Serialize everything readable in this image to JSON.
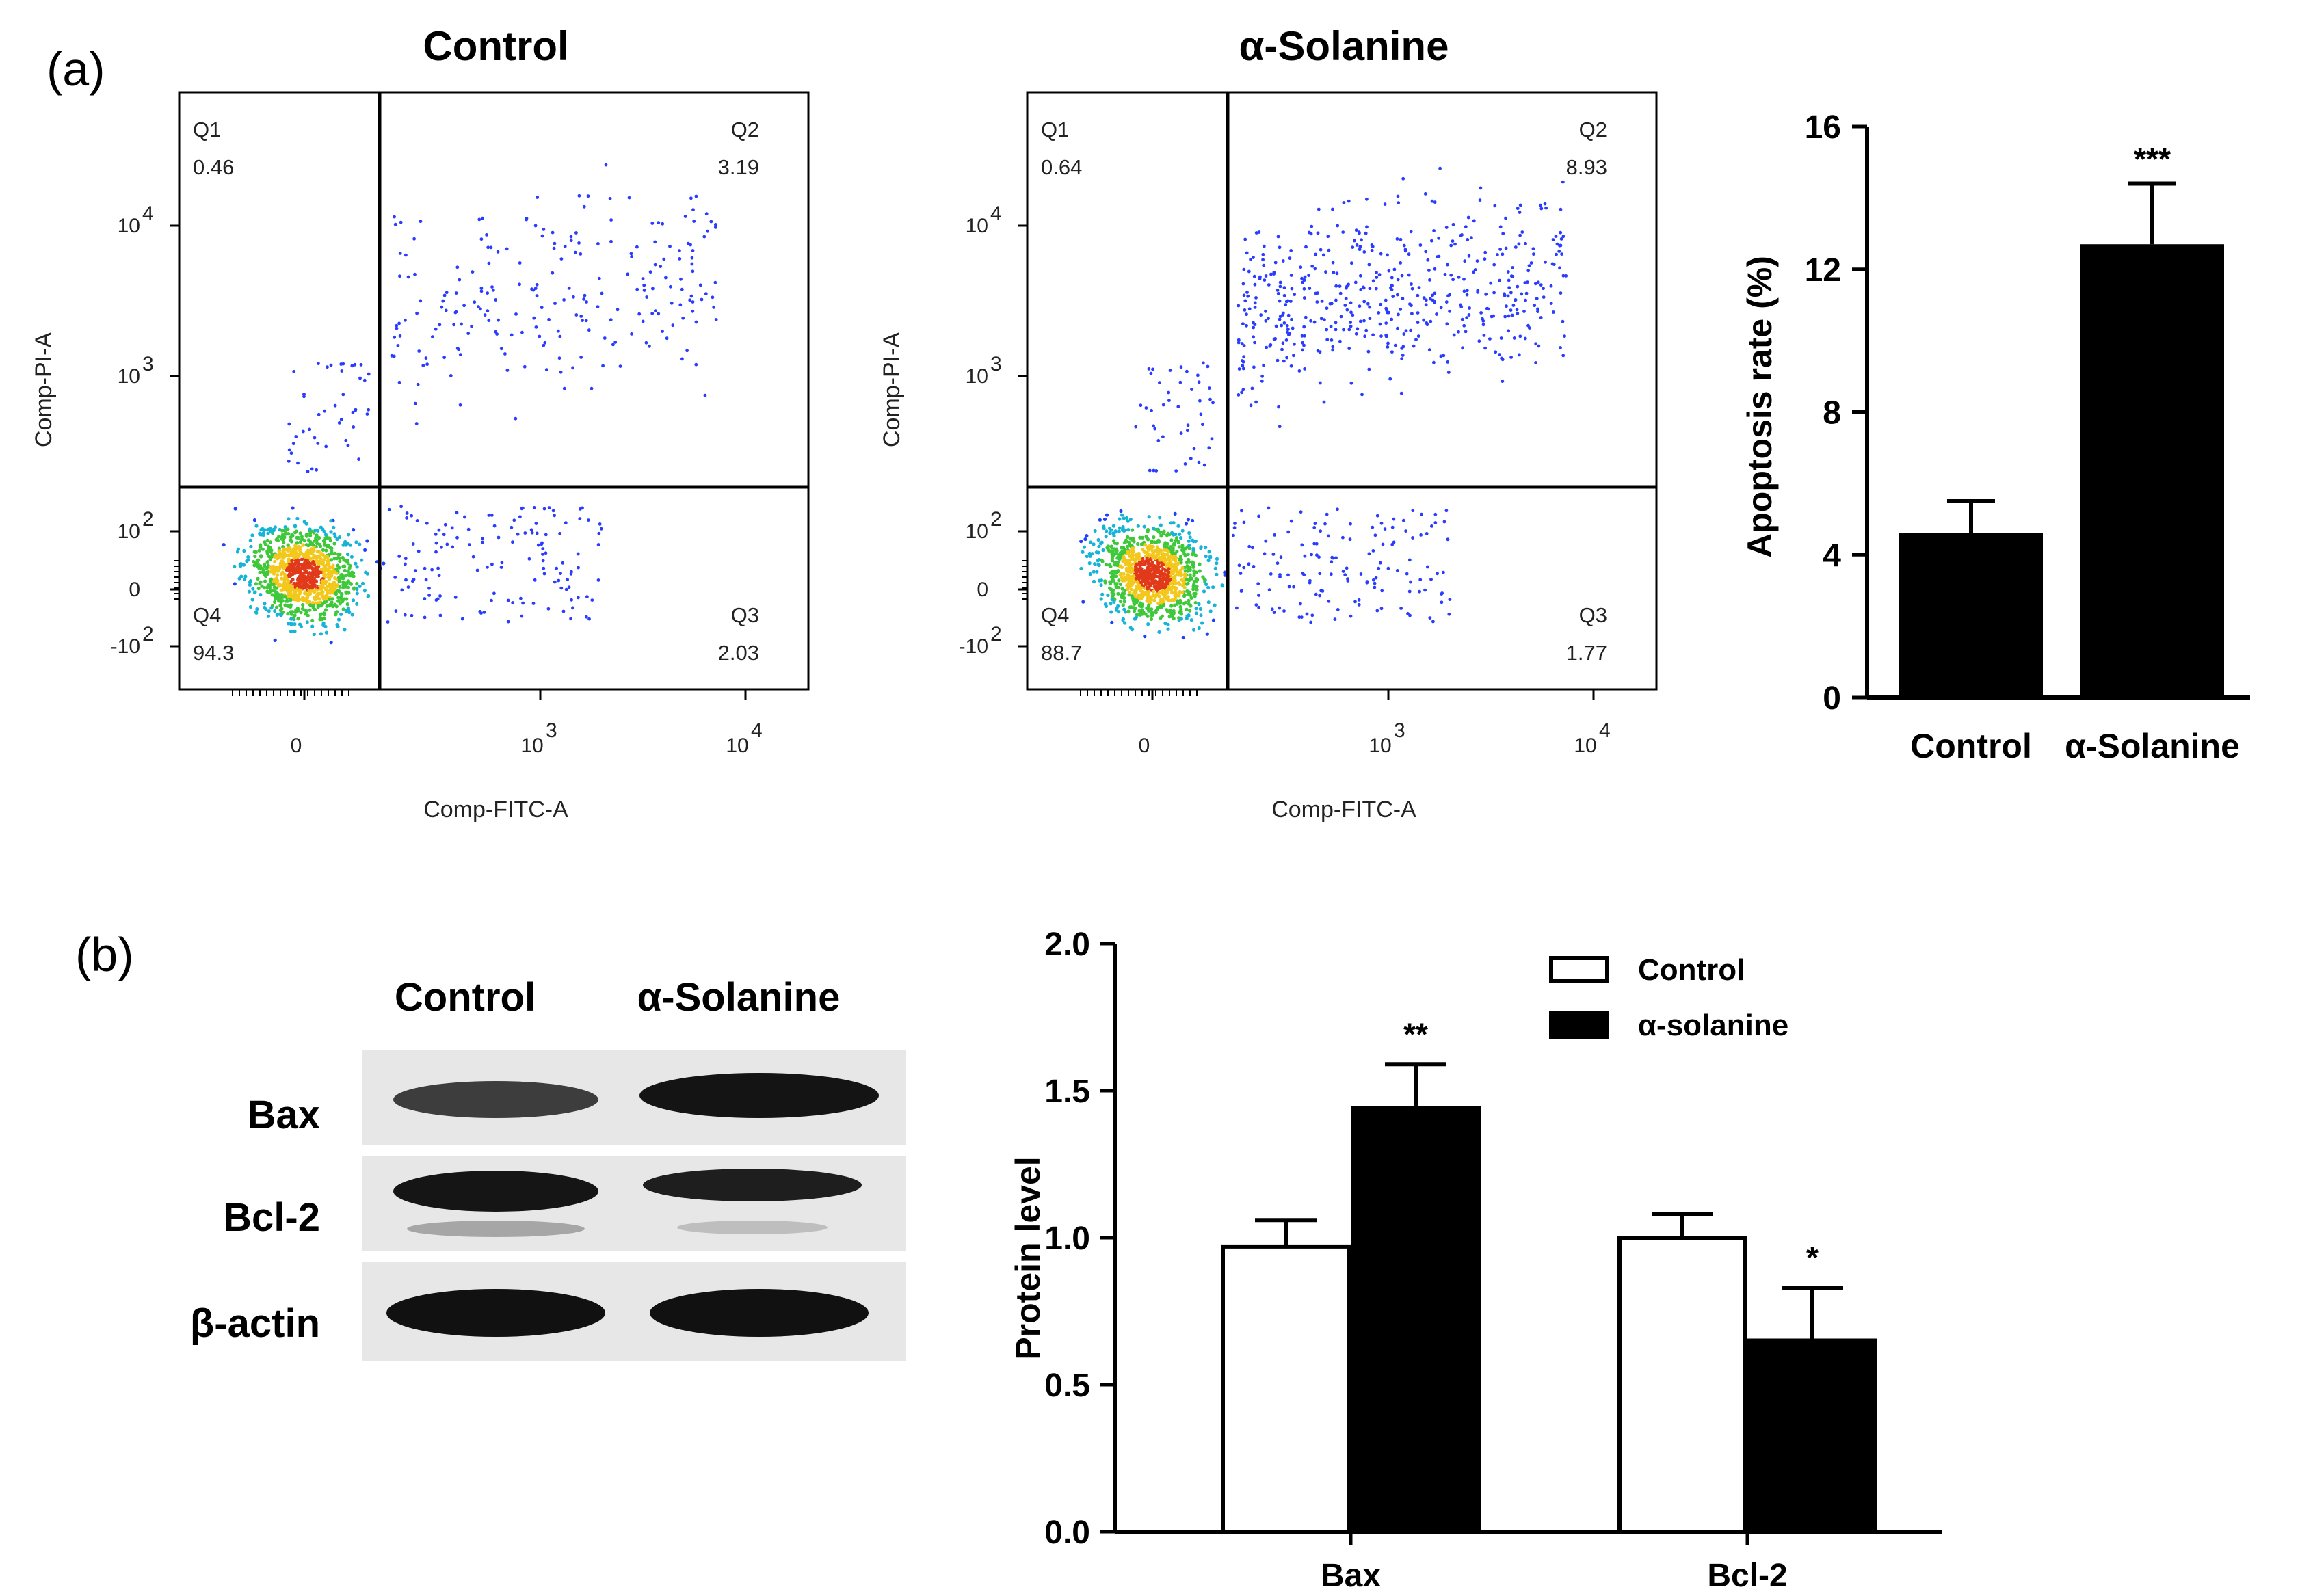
{
  "panel_a_label": "(a)",
  "panel_b_label": "(b)",
  "flow_panels": [
    {
      "title": "Control",
      "xlabel": "Comp-FITC-A",
      "ylabel": "Comp-PI-A",
      "quadrants": {
        "Q1": "0.46",
        "Q2": "3.19",
        "Q3": "2.03",
        "Q4": "94.3"
      }
    },
    {
      "title": "α-Solanine",
      "xlabel": "Comp-FITC-A",
      "ylabel": "Comp-PI-A",
      "quadrants": {
        "Q1": "0.64",
        "Q2": "8.93",
        "Q3": "1.77",
        "Q4": "88.7"
      }
    }
  ],
  "quadrant_names": [
    "Q1",
    "Q2",
    "Q3",
    "Q4"
  ],
  "flow_axis": {
    "x_ticks": [
      {
        "base": "0",
        "exp": ""
      },
      {
        "base": "10",
        "exp": "3"
      },
      {
        "base": "10",
        "exp": "4"
      }
    ],
    "y_ticks": [
      {
        "base": "10",
        "exp": "4"
      },
      {
        "base": "10",
        "exp": "3"
      },
      {
        "base": "10",
        "exp": "2"
      },
      {
        "base": "0",
        "exp": ""
      },
      {
        "base": "-10",
        "exp": "2"
      }
    ]
  },
  "western_blot": {
    "lanes": [
      "Control",
      "α-Solanine"
    ],
    "rows": [
      "Bax",
      "Bcl-2",
      "β-actin"
    ]
  },
  "chart_data": [
    {
      "type": "bar",
      "title": "",
      "categories": [
        "Control",
        "α-Solanine"
      ],
      "values": [
        4.6,
        12.7
      ],
      "errors": [
        0.9,
        1.7
      ],
      "significance": [
        "",
        "***"
      ],
      "ylabel": "Apoptosis rate (%)",
      "xlabel": "",
      "ylim": [
        0,
        16
      ],
      "yticks": [
        0,
        4,
        8,
        12,
        16
      ],
      "colors": [
        "#000000"
      ]
    },
    {
      "type": "bar",
      "title": "",
      "categories": [
        "Bax",
        "Bcl-2"
      ],
      "series": [
        {
          "name": "Control",
          "values": [
            0.97,
            1.0
          ],
          "errors": [
            0.09,
            0.08
          ],
          "significance": [
            "",
            ""
          ],
          "color": "#ffffff"
        },
        {
          "name": "α-solanine",
          "values": [
            1.44,
            0.65
          ],
          "errors": [
            0.15,
            0.18
          ],
          "significance": [
            "**",
            "*"
          ],
          "color": "#000000"
        }
      ],
      "ylabel": "Protein level",
      "xlabel": "",
      "ylim": [
        0,
        2.0
      ],
      "yticks": [
        "0.0",
        "0.5",
        "1.0",
        "1.5",
        "2.0"
      ],
      "legend_position": "top-right"
    }
  ]
}
